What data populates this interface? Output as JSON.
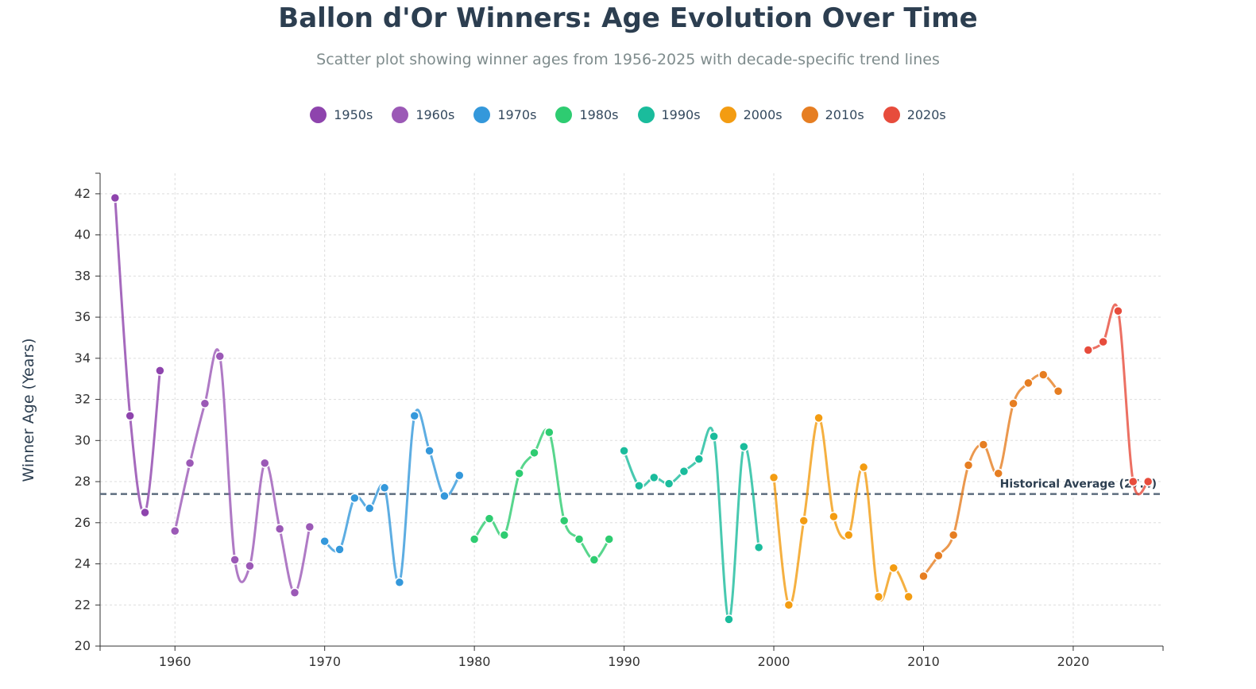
{
  "title": "Ballon d'Or Winners: Age Evolution Over Time",
  "subtitle": "Scatter plot showing winner ages from 1956-2025 with decade-specific trend lines",
  "chart_data": {
    "type": "scatter",
    "title": "Ballon d'Or Winners: Age Evolution Over Time",
    "ylabel": "Winner Age (Years)",
    "xlabel": "",
    "xlim": [
      1955,
      2026
    ],
    "ylim": [
      20,
      43
    ],
    "xticks": [
      1960,
      1970,
      1980,
      1990,
      2000,
      2010,
      2020
    ],
    "yticks": [
      20,
      22,
      24,
      26,
      28,
      30,
      32,
      34,
      36,
      38,
      40,
      42
    ],
    "grid": true,
    "legend_position": "top",
    "average": {
      "value": 27.4,
      "label": "Historical Average (27.4)"
    },
    "series": [
      {
        "name": "1950s",
        "color": "#8e44ad",
        "x": [
          1956,
          1957,
          1958,
          1959
        ],
        "values": [
          41.8,
          31.2,
          26.5,
          33.4
        ]
      },
      {
        "name": "1960s",
        "color": "#9b59b6",
        "x": [
          1960,
          1961,
          1962,
          1963,
          1964,
          1965,
          1966,
          1967,
          1968,
          1969
        ],
        "values": [
          25.6,
          28.9,
          31.8,
          34.1,
          24.2,
          23.9,
          28.9,
          25.7,
          22.6,
          25.8
        ]
      },
      {
        "name": "1970s",
        "color": "#3498db",
        "x": [
          1970,
          1971,
          1972,
          1973,
          1974,
          1975,
          1976,
          1977,
          1978,
          1979
        ],
        "values": [
          25.1,
          24.7,
          27.2,
          26.7,
          27.7,
          23.1,
          31.2,
          29.5,
          27.3,
          28.3
        ]
      },
      {
        "name": "1980s",
        "color": "#2ecc71",
        "x": [
          1980,
          1981,
          1982,
          1983,
          1984,
          1985,
          1986,
          1987,
          1988,
          1989
        ],
        "values": [
          25.2,
          26.2,
          25.4,
          28.4,
          29.4,
          30.4,
          26.1,
          25.2,
          24.2,
          25.2
        ]
      },
      {
        "name": "1990s",
        "color": "#1abc9c",
        "x": [
          1990,
          1991,
          1992,
          1993,
          1994,
          1995,
          1996,
          1997,
          1998,
          1999
        ],
        "values": [
          29.5,
          27.8,
          28.2,
          27.9,
          28.5,
          29.1,
          30.2,
          21.3,
          29.7,
          24.8
        ]
      },
      {
        "name": "2000s",
        "color": "#f39c12",
        "x": [
          2000,
          2001,
          2002,
          2003,
          2004,
          2005,
          2006,
          2007,
          2008,
          2009
        ],
        "values": [
          28.2,
          22.0,
          26.1,
          31.1,
          26.3,
          25.4,
          28.7,
          22.4,
          23.8,
          22.4
        ]
      },
      {
        "name": "2010s",
        "color": "#e67e22",
        "x": [
          2010,
          2011,
          2012,
          2013,
          2014,
          2015,
          2016,
          2017,
          2018,
          2019
        ],
        "values": [
          23.4,
          24.4,
          25.4,
          28.8,
          29.8,
          28.4,
          31.8,
          32.8,
          33.2,
          32.4
        ]
      },
      {
        "name": "2020s",
        "color": "#e74c3c",
        "x": [
          2021,
          2022,
          2023,
          2024,
          2025
        ],
        "values": [
          34.4,
          34.8,
          36.3,
          28.0,
          28.0
        ]
      }
    ]
  }
}
